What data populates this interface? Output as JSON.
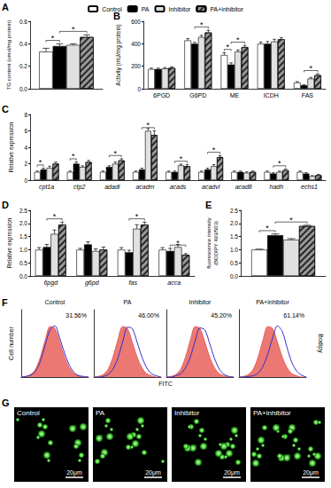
{
  "chart_data": [
    {
      "panel": "A",
      "type": "bar",
      "y_label": "TG content (umol/mg protein)",
      "legend": "top",
      "grid": false,
      "categories": [
        null
      ],
      "ylim": [
        0,
        0.6
      ],
      "yticks": [
        {
          "value": 0,
          "label": "0.0"
        },
        0.2,
        0.4,
        0.6
      ],
      "series": [
        {
          "name": "Control",
          "color": "#ffffff",
          "values": [
            0.33
          ],
          "errors": [
            0.03
          ]
        },
        {
          "name": "PA",
          "color": "#000000",
          "values": [
            0.38
          ],
          "errors": [
            0.02
          ]
        },
        {
          "name": "Inhibitor",
          "color": "#e0e0e0",
          "values": [
            0.39
          ],
          "errors": [
            0.01
          ]
        },
        {
          "name": "PA+inhibitor",
          "color": "#999999",
          "values": [
            0.46
          ],
          "errors": [
            0.02
          ]
        }
      ],
      "annotations": [
        {
          "text": "*",
          "category": null,
          "pair": [
            "Control",
            "PA"
          ]
        },
        {
          "text": "*",
          "category": null,
          "pair": [
            "PA",
            "PA+inhibitor"
          ]
        }
      ]
    },
    {
      "panel": "B",
      "type": "bar",
      "y_label": "Activity (mU/mg protein)",
      "grid": false,
      "categories": [
        "6PGD",
        "G6PD",
        "ME",
        "ICDH",
        "FAS"
      ],
      "ylim": [
        0,
        600
      ],
      "yticks": [
        0,
        200,
        400,
        600
      ],
      "series": [
        {
          "name": "Control",
          "color": "#ffffff",
          "values": [
            175,
            430,
            300,
            400,
            55
          ],
          "errors": [
            8,
            15,
            20,
            15,
            8
          ]
        },
        {
          "name": "PA",
          "color": "#000000",
          "values": [
            175,
            400,
            215,
            400,
            30
          ],
          "errors": [
            8,
            12,
            15,
            20,
            5
          ]
        },
        {
          "name": "Inhibitor",
          "color": "#e0e0e0",
          "values": [
            180,
            460,
            330,
            420,
            90
          ],
          "errors": [
            8,
            15,
            15,
            20,
            10
          ]
        },
        {
          "name": "PA+inhibitor",
          "color": "#999999",
          "values": [
            185,
            500,
            370,
            440,
            120
          ],
          "errors": [
            10,
            20,
            15,
            15,
            12
          ]
        }
      ],
      "annotations": [
        {
          "text": "*",
          "category": "G6PD",
          "pair": [
            "PA",
            "PA+inhibitor"
          ]
        },
        {
          "text": "*",
          "category": "ME",
          "pair": [
            "Control",
            "PA"
          ]
        },
        {
          "text": "*",
          "category": "ME",
          "pair": [
            "PA",
            "PA+inhibitor"
          ]
        },
        {
          "text": "*",
          "category": "FAS",
          "pair": [
            "PA",
            "PA+inhibitor"
          ]
        }
      ]
    },
    {
      "panel": "C",
      "type": "bar",
      "y_label": "Relative expression",
      "grid": false,
      "categories": [
        "cpt1a",
        "ctp2",
        "adadl",
        "acadm",
        "acads",
        "acadvl",
        "acad8",
        "hadh",
        "echs1"
      ],
      "ylim": [
        0,
        8
      ],
      "yticks": [
        0,
        2,
        4,
        6,
        8
      ],
      "series": [
        {
          "name": "Control",
          "color": "#ffffff",
          "values": [
            1,
            1,
            1,
            1,
            1,
            1,
            1,
            1,
            1
          ],
          "errors": [
            0.1,
            0.1,
            0.1,
            0.1,
            0.1,
            0.1,
            0.1,
            0.1,
            0.1
          ]
        },
        {
          "name": "PA",
          "color": "#000000",
          "values": [
            1.3,
            2.0,
            1.6,
            1.3,
            1.0,
            1.3,
            1.0,
            0.8,
            0.8
          ],
          "errors": [
            0.15,
            0.2,
            0.15,
            0.15,
            0.1,
            0.15,
            0.1,
            0.1,
            0.1
          ]
        },
        {
          "name": "Inhibitor",
          "color": "#e0e0e0",
          "values": [
            1.5,
            1.6,
            2.0,
            6.0,
            1.8,
            1.7,
            0.9,
            1.0,
            0.5
          ],
          "errors": [
            0.2,
            0.15,
            0.2,
            0.3,
            0.15,
            0.2,
            0.1,
            0.1,
            0.05
          ]
        },
        {
          "name": "PA+inhibitor",
          "color": "#999999",
          "values": [
            2.0,
            2.2,
            2.4,
            5.5,
            1.7,
            2.8,
            1.0,
            1.2,
            0.6
          ],
          "errors": [
            0.2,
            0.2,
            0.2,
            0.5,
            0.2,
            0.2,
            0.1,
            0.15,
            0.1
          ]
        }
      ],
      "annotations": [
        {
          "text": "*",
          "category": "cpt1a",
          "pair": [
            "Control",
            "PA"
          ]
        },
        {
          "text": "*",
          "category": "ctp2",
          "pair": [
            "Control",
            "PA"
          ]
        },
        {
          "text": "*",
          "category": "adadl",
          "pair": [
            "PA",
            "PA+inhibitor"
          ]
        },
        {
          "text": "*",
          "category": "acadm",
          "pair": [
            "PA",
            "PA+inhibitor"
          ]
        },
        {
          "text": "*",
          "category": "acads",
          "pair": [
            "PA",
            "PA+inhibitor"
          ]
        },
        {
          "text": "*",
          "category": "acadvl",
          "pair": [
            "PA",
            "PA+inhibitor"
          ]
        },
        {
          "text": "*",
          "category": "hadh",
          "pair": [
            "PA",
            "PA+inhibitor"
          ]
        }
      ]
    },
    {
      "panel": "D",
      "type": "bar",
      "y_label": "Relative expression",
      "grid": false,
      "categories": [
        "6pgd",
        "g6pd",
        "fas",
        "acca"
      ],
      "ylim": [
        0,
        2.5
      ],
      "yticks": [
        {
          "value": 0,
          "label": "0.0"
        },
        0.5,
        {
          "value": 1,
          "label": "1.0"
        },
        1.5,
        {
          "value": 2,
          "label": "2.0"
        },
        2.5
      ],
      "series": [
        {
          "name": "Control",
          "color": "#ffffff",
          "values": [
            1,
            1,
            1,
            1
          ],
          "errors": [
            0.08,
            0.05,
            0.08,
            0.08
          ]
        },
        {
          "name": "PA",
          "color": "#000000",
          "values": [
            1.1,
            1.2,
            0.9,
            0.95
          ],
          "errors": [
            0.1,
            0.1,
            0.08,
            0.1
          ]
        },
        {
          "name": "Inhibitor",
          "color": "#e0e0e0",
          "values": [
            1.6,
            0.95,
            1.8,
            1.1
          ],
          "errors": [
            0.15,
            0.08,
            0.15,
            0.1
          ]
        },
        {
          "name": "PA+inhibitor",
          "color": "#999999",
          "values": [
            1.95,
            1.0,
            1.95,
            0.8
          ],
          "errors": [
            0.1,
            0.1,
            0.1,
            0.05
          ]
        }
      ],
      "annotations": [
        {
          "text": "*",
          "category": "6pgd",
          "pair": [
            "PA",
            "PA+inhibitor"
          ]
        },
        {
          "text": "*",
          "category": "fas",
          "pair": [
            "PA",
            "PA+inhibitor"
          ]
        },
        {
          "text": "*",
          "category": "acca",
          "pair": [
            "PA",
            "PA+inhibitor"
          ]
        }
      ]
    },
    {
      "panel": "E",
      "type": "bar",
      "y_label": "fluorescence intensity\n(BODIPY 493/503)",
      "grid": false,
      "categories": [
        null
      ],
      "ylim": [
        0,
        2.5
      ],
      "yticks": [
        {
          "value": 0,
          "label": "0.0"
        },
        0.5,
        {
          "value": 1,
          "label": "1.0"
        },
        1.5,
        {
          "value": 2,
          "label": "2.0"
        },
        2.5
      ],
      "series": [
        {
          "name": "Control",
          "color": "#ffffff",
          "values": [
            1.0
          ],
          "errors": [
            0.02
          ]
        },
        {
          "name": "PA",
          "color": "#000000",
          "values": [
            1.55
          ],
          "errors": [
            0.05
          ]
        },
        {
          "name": "Inhibitor",
          "color": "#e0e0e0",
          "values": [
            1.38
          ],
          "errors": [
            0.04
          ]
        },
        {
          "name": "PA+inhibitor",
          "color": "#999999",
          "values": [
            1.9
          ],
          "errors": [
            0.03
          ]
        }
      ],
      "annotations": [
        {
          "text": "*",
          "category": null,
          "pair": [
            "Control",
            "PA"
          ]
        },
        {
          "text": "*",
          "category": null,
          "pair": [
            "PA",
            "PA+inhibitor"
          ]
        }
      ]
    },
    {
      "panel": "F",
      "type": "line",
      "title": "Control",
      "tick_labels": false,
      "x": [
        0,
        1,
        2,
        3,
        4,
        5,
        6,
        7,
        8,
        9,
        10,
        11,
        12,
        13,
        14
      ],
      "xlim": [
        0,
        14
      ],
      "ylim": [
        0,
        100
      ],
      "series": [
        {
          "type": "area",
          "color": "#e8605a",
          "values": [
            0,
            1,
            4,
            12,
            30,
            55,
            75,
            72,
            52,
            30,
            14,
            5,
            2,
            0,
            0
          ]
        },
        {
          "type": "line",
          "color": "#2f2fc8",
          "values": [
            0,
            1,
            3,
            9,
            24,
            48,
            70,
            76,
            58,
            36,
            18,
            7,
            2,
            1,
            0
          ]
        }
      ],
      "annotations": [
        {
          "text": "31.56%"
        }
      ]
    },
    {
      "panel": "F",
      "type": "line",
      "title": "PA",
      "tick_labels": false,
      "x": [
        0,
        1,
        2,
        3,
        4,
        5,
        6,
        7,
        8,
        9,
        10,
        11,
        12,
        13,
        14
      ],
      "xlim": [
        0,
        14
      ],
      "ylim": [
        0,
        100
      ],
      "series": [
        {
          "type": "area",
          "color": "#e8605a",
          "values": [
            0,
            1,
            4,
            12,
            30,
            55,
            75,
            72,
            52,
            30,
            14,
            5,
            2,
            0,
            0
          ]
        },
        {
          "type": "line",
          "color": "#2f2fc8",
          "values": [
            0,
            0,
            1,
            4,
            12,
            28,
            52,
            74,
            72,
            52,
            30,
            14,
            5,
            2,
            0
          ]
        }
      ],
      "annotations": [
        {
          "text": "46.00%"
        }
      ]
    },
    {
      "panel": "F",
      "type": "line",
      "title": "Inhibitor",
      "tick_labels": false,
      "x": [
        0,
        1,
        2,
        3,
        4,
        5,
        6,
        7,
        8,
        9,
        10,
        11,
        12,
        13,
        14
      ],
      "xlim": [
        0,
        14
      ],
      "ylim": [
        0,
        100
      ],
      "series": [
        {
          "type": "area",
          "color": "#e8605a",
          "values": [
            0,
            1,
            4,
            12,
            30,
            55,
            75,
            72,
            52,
            30,
            14,
            5,
            2,
            0,
            0
          ]
        },
        {
          "type": "line",
          "color": "#2f2fc8",
          "values": [
            0,
            0,
            2,
            5,
            14,
            30,
            54,
            73,
            70,
            50,
            28,
            12,
            4,
            1,
            0
          ]
        }
      ],
      "annotations": [
        {
          "text": "45.20%"
        }
      ]
    },
    {
      "panel": "F",
      "type": "line",
      "title": "PA+inhibitor",
      "tick_labels": false,
      "x": [
        0,
        1,
        2,
        3,
        4,
        5,
        6,
        7,
        8,
        9,
        10,
        11,
        12,
        13,
        14
      ],
      "xlim": [
        0,
        14
      ],
      "ylim": [
        0,
        100
      ],
      "series": [
        {
          "type": "area",
          "color": "#e8605a",
          "values": [
            0,
            1,
            4,
            12,
            30,
            55,
            75,
            72,
            52,
            30,
            14,
            5,
            2,
            0,
            0
          ]
        },
        {
          "type": "line",
          "color": "#2f2fc8",
          "values": [
            0,
            0,
            1,
            2,
            6,
            16,
            34,
            58,
            76,
            68,
            44,
            22,
            9,
            3,
            0
          ]
        }
      ],
      "annotations": [
        {
          "text": "61.14%"
        }
      ]
    }
  ],
  "panel_F": {
    "panel": "F",
    "x_label": "FITC",
    "y_label": "Cell number",
    "side_label": "Bodipy"
  },
  "images": {
    "panel": "G",
    "labels": [
      "Control",
      "PA",
      "Inhibitor",
      "PA+inhibitor"
    ],
    "scale_bar": "20μm"
  }
}
